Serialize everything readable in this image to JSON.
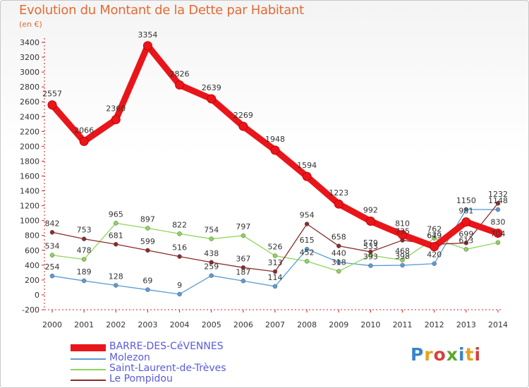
{
  "header": {
    "title": "Evolution du Montant de la Dette par Habitant",
    "subtitle": "(en €)"
  },
  "logo": {
    "text": "Proxiti",
    "colors": [
      "#3a84c8",
      "#e8a020",
      "#d84040",
      "#5aa830"
    ]
  },
  "chart_data": {
    "type": "line",
    "categories": [
      "2000",
      "2001",
      "2002",
      "2003",
      "2004",
      "2005",
      "2006",
      "2007",
      "2008",
      "2009",
      "2010",
      "2011",
      "2012",
      "2013",
      "2014"
    ],
    "ylim": [
      -200,
      3400
    ],
    "yticks": [
      -200,
      0,
      200,
      400,
      600,
      800,
      1000,
      1200,
      1400,
      1600,
      1800,
      2000,
      2200,
      2400,
      2600,
      2800,
      3000,
      3200,
      3400
    ],
    "grid": false,
    "legend_position": "bottom-left",
    "series": [
      {
        "name": "BARRE-DES-CéVENNES",
        "color": "#e8161a",
        "highlight": true,
        "values": [
          2557,
          2066,
          2360,
          3354,
          2826,
          2639,
          2269,
          1948,
          1594,
          1223,
          992,
          810,
          649,
          981,
          830
        ],
        "labels": [
          "2557",
          "2066",
          "2360",
          "3354",
          "2826",
          "2639",
          "2269",
          "1948",
          "1594",
          "1223",
          "992",
          "810",
          "649",
          "981",
          "830"
        ]
      },
      {
        "name": "Molezon",
        "color": "#5b9bd5",
        "values": [
          254,
          189,
          128,
          69,
          9,
          259,
          187,
          114,
          615,
          440,
          393,
          398,
          420,
          1150,
          1148
        ],
        "labels": [
          "254",
          "189",
          "128",
          "69",
          "9",
          "259",
          "187",
          "114",
          "615",
          "440",
          "393",
          "398",
          "420",
          "1150",
          "1148"
        ]
      },
      {
        "name": "Saint-Laurent-de-Trèves",
        "color": "#8fd45a",
        "values": [
          534,
          478,
          965,
          897,
          822,
          754,
          797,
          526,
          452,
          318,
          533,
          468,
          762,
          613,
          704
        ],
        "labels": [
          "534",
          "478",
          "965",
          "897",
          "822",
          "754",
          "797",
          "526",
          "452",
          "318",
          "533",
          "468",
          "762",
          "613",
          "704"
        ]
      },
      {
        "name": "Le Pompidou",
        "color": "#8b2b2b",
        "values": [
          842,
          753,
          681,
          599,
          516,
          438,
          367,
          313,
          954,
          658,
          579,
          735,
          679,
          699,
          1232
        ],
        "labels": [
          "842",
          "753",
          "681",
          "599",
          "516",
          "438",
          "367",
          "313",
          "954",
          "658",
          "579",
          "735",
          "679",
          "699",
          "1232"
        ]
      }
    ]
  }
}
